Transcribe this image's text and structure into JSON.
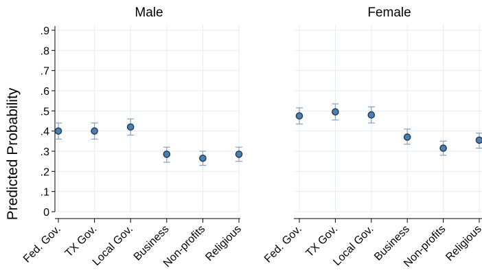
{
  "ylabel": "Predicted Probability",
  "y_tick_labels": [
    "0",
    ".1",
    ".2",
    ".3",
    ".4",
    ".5",
    ".6",
    ".7",
    ".8",
    ".9"
  ],
  "colors": {
    "grid": "#e3edf1",
    "point_fill": "#4e7ea9",
    "point_stroke": "#1d3c5a",
    "ci": "#8ba6c5",
    "axis": "#000000"
  },
  "chart_data": [
    {
      "type": "scatter",
      "title": "Male",
      "ylabel": "Predicted Probability",
      "xlabel": "",
      "categories": [
        "Fed. Gov.",
        "TX Gov.",
        "Local Gov.",
        "Business",
        "Non-profits",
        "Religious"
      ],
      "values": [
        0.4,
        0.4,
        0.42,
        0.285,
        0.265,
        0.285
      ],
      "ci_low": [
        0.36,
        0.36,
        0.38,
        0.245,
        0.23,
        0.25
      ],
      "ci_high": [
        0.44,
        0.44,
        0.46,
        0.32,
        0.3,
        0.32
      ],
      "ylim": [
        0,
        0.9
      ],
      "yticks": [
        0,
        0.1,
        0.2,
        0.3,
        0.4,
        0.5,
        0.6,
        0.7,
        0.8,
        0.9
      ],
      "grid": true,
      "error_bars": true
    },
    {
      "type": "scatter",
      "title": "Female",
      "ylabel": "",
      "xlabel": "",
      "categories": [
        "Fed. Gov.",
        "TX Gov.",
        "Local Gov.",
        "Business",
        "Non-profits",
        "Religious"
      ],
      "values": [
        0.475,
        0.495,
        0.48,
        0.37,
        0.315,
        0.355
      ],
      "ci_low": [
        0.435,
        0.455,
        0.44,
        0.335,
        0.28,
        0.315
      ],
      "ci_high": [
        0.515,
        0.535,
        0.52,
        0.41,
        0.35,
        0.39
      ],
      "ylim": [
        0,
        0.9
      ],
      "yticks": [
        0,
        0.1,
        0.2,
        0.3,
        0.4,
        0.5,
        0.6,
        0.7,
        0.8,
        0.9
      ],
      "grid": true,
      "error_bars": true
    }
  ]
}
